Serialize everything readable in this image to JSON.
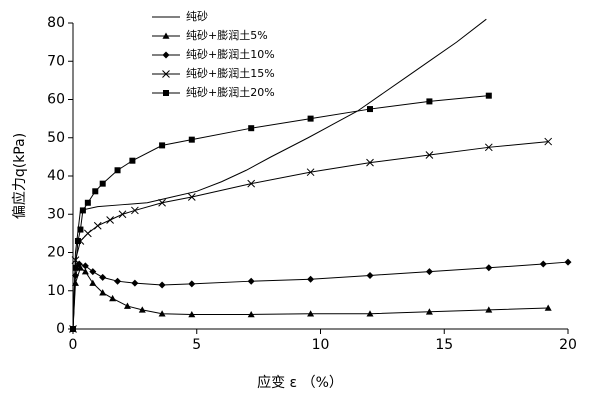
{
  "chart_data": {
    "type": "line",
    "xlabel": "应变 ε （%）",
    "ylabel": "偏应力q(kPa)",
    "xlim": [
      0,
      20
    ],
    "xticks": [
      0,
      5,
      10,
      15,
      20
    ],
    "ylim": [
      0,
      80
    ],
    "yticks": [
      0,
      10,
      20,
      30,
      40,
      50,
      60,
      70,
      80
    ],
    "legend": "upper-left",
    "series": [
      {
        "name": "纯砂",
        "color": "#000000",
        "marker": "none",
        "x": [
          0,
          0.1,
          0.3,
          1,
          2,
          3,
          4,
          5,
          6,
          7,
          8,
          9.5,
          10.5,
          11.5,
          12.5,
          13.5,
          14.5,
          15.5,
          16.7
        ],
        "values": [
          0,
          20,
          31,
          32,
          32.5,
          33,
          34.5,
          36,
          38.5,
          41.5,
          45,
          50,
          53.5,
          57,
          61.5,
          66,
          70.5,
          75,
          81
        ]
      },
      {
        "name": "纯砂+膨润土5%",
        "color": "#000000",
        "marker": "triangle",
        "x": [
          0,
          0.1,
          0.3,
          0.5,
          0.8,
          1.2,
          1.6,
          2.2,
          2.8,
          3.6,
          4.8,
          7.2,
          9.6,
          12,
          14.4,
          16.8,
          19.2
        ],
        "values": [
          0,
          12,
          16,
          15,
          12,
          9.5,
          8,
          6,
          5,
          4,
          3.8,
          3.8,
          4,
          4,
          4.5,
          5,
          5.5
        ]
      },
      {
        "name": "纯砂+膨润土10%",
        "color": "#000000",
        "marker": "diamond",
        "x": [
          0,
          0.1,
          0.25,
          0.5,
          0.8,
          1.2,
          1.8,
          2.5,
          3.6,
          4.8,
          7.2,
          9.6,
          12,
          14.4,
          16.8,
          19,
          20
        ],
        "values": [
          0,
          14,
          17,
          16.5,
          15,
          13.5,
          12.5,
          12,
          11.5,
          11.8,
          12.5,
          13,
          14,
          15,
          16,
          17,
          17.5
        ]
      },
      {
        "name": "纯砂+膨润土15%",
        "color": "#000000",
        "marker": "cross",
        "x": [
          0,
          0.1,
          0.3,
          0.6,
          1,
          1.5,
          2,
          2.5,
          3.6,
          4.8,
          7.2,
          9.6,
          12,
          14.4,
          16.8,
          19.2
        ],
        "values": [
          0,
          18,
          23,
          25,
          27,
          28.5,
          30,
          31,
          33,
          34.5,
          38,
          41,
          43.5,
          45.5,
          47.5,
          49
        ]
      },
      {
        "name": "纯砂+膨润土20%",
        "color": "#000000",
        "marker": "square",
        "x": [
          0,
          0.1,
          0.2,
          0.3,
          0.4,
          0.6,
          0.9,
          1.2,
          1.8,
          2.4,
          3.6,
          4.8,
          7.2,
          9.6,
          12,
          14.4,
          16.8
        ],
        "values": [
          0,
          16,
          23,
          26,
          31,
          33,
          36,
          38,
          41.5,
          44,
          48,
          49.5,
          52.5,
          55,
          57.5,
          59.5,
          61
        ]
      }
    ]
  }
}
